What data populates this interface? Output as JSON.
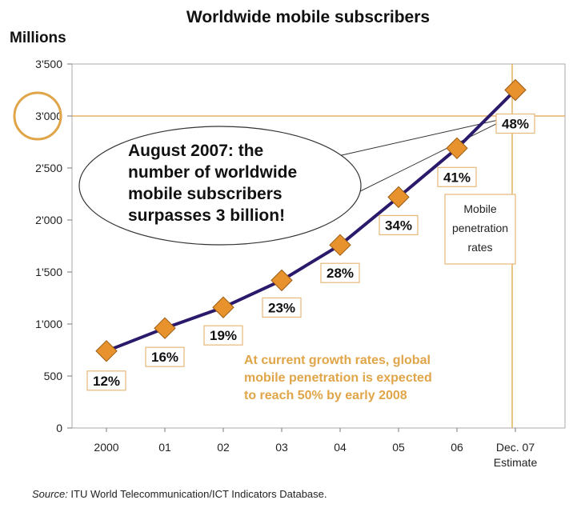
{
  "chart_data": {
    "type": "line",
    "title": "Worldwide mobile subscribers",
    "ylabel": "Millions",
    "xlabel": "",
    "categories": [
      "2000",
      "01",
      "02",
      "03",
      "04",
      "05",
      "06",
      "Dec. 07 Estimate"
    ],
    "category_lines": [
      [
        "2000"
      ],
      [
        "01"
      ],
      [
        "02"
      ],
      [
        "03"
      ],
      [
        "04"
      ],
      [
        "05"
      ],
      [
        "06"
      ],
      [
        "Dec. 07",
        "Estimate"
      ]
    ],
    "values": [
      740,
      960,
      1160,
      1420,
      1760,
      2220,
      2690,
      3250
    ],
    "penetration_labels": [
      "12%",
      "16%",
      "19%",
      "23%",
      "28%",
      "34%",
      "41%",
      "48%"
    ],
    "ylim": [
      0,
      3500
    ],
    "yticks": [
      {
        "v": 0,
        "label": "0"
      },
      {
        "v": 500,
        "label": "500"
      },
      {
        "v": 1000,
        "label": "1'000"
      },
      {
        "v": 1500,
        "label": "1'500"
      },
      {
        "v": 2000,
        "label": "2'000"
      },
      {
        "v": 2500,
        "label": "2'500"
      },
      {
        "v": 3000,
        "label": "3'000"
      },
      {
        "v": 3500,
        "label": "3'500"
      }
    ],
    "reference_value": 3000,
    "grid": false,
    "colors": {
      "line": "#2b1a6b",
      "marker": "#e8922e",
      "marker_stroke": "#9a5a10",
      "accent": "#e0a548",
      "axis_box": "#aaaaaa",
      "label_box": "#e6b87a"
    },
    "callout_lines": [
      "August 2007: the",
      "number of worldwide",
      "mobile subscribers",
      "surpasses 3 billion!"
    ],
    "note_lines": [
      "At current growth rates, global",
      "mobile penetration is expected",
      "to reach 50% by early 2008"
    ],
    "mobile_box_lines": [
      "Mobile",
      "penetration",
      "rates"
    ]
  },
  "source": {
    "label": "Source:",
    "text": " ITU World Telecommunication/ICT Indicators Database."
  }
}
